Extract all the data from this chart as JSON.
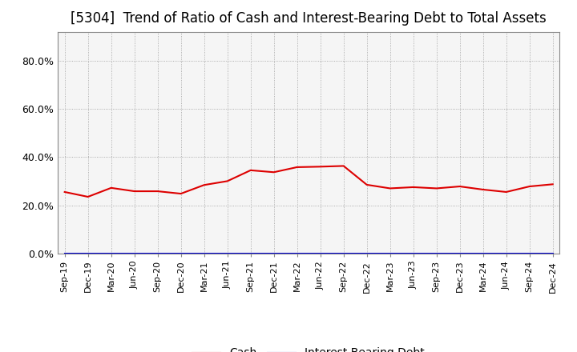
{
  "title": "[5304]  Trend of Ratio of Cash and Interest-Bearing Debt to Total Assets",
  "x_labels": [
    "Sep-19",
    "Dec-19",
    "Mar-20",
    "Jun-20",
    "Sep-20",
    "Dec-20",
    "Mar-21",
    "Jun-21",
    "Sep-21",
    "Dec-21",
    "Mar-22",
    "Jun-22",
    "Sep-22",
    "Dec-22",
    "Mar-23",
    "Jun-23",
    "Sep-23",
    "Dec-23",
    "Mar-24",
    "Jun-24",
    "Sep-24",
    "Dec-24"
  ],
  "cash_values": [
    0.255,
    0.235,
    0.272,
    0.258,
    0.258,
    0.248,
    0.284,
    0.3,
    0.345,
    0.337,
    0.358,
    0.36,
    0.363,
    0.285,
    0.27,
    0.275,
    0.27,
    0.278,
    0.265,
    0.255,
    0.278,
    0.287
  ],
  "interest_bearing_debt_values": [
    0.0,
    0.0,
    0.0,
    0.0,
    0.0,
    0.0,
    0.0,
    0.0,
    0.0,
    0.0,
    0.0,
    0.0,
    0.0,
    0.0,
    0.0,
    0.0,
    0.0,
    0.0,
    0.0,
    0.0,
    0.0,
    0.0
  ],
  "cash_color": "#dd0000",
  "interest_color": "#0000cc",
  "background_color": "#ffffff",
  "plot_bg_color": "#f5f5f5",
  "grid_color": "#999999",
  "title_fontsize": 12,
  "legend_labels": [
    "Cash",
    "Interest-Bearing Debt"
  ],
  "ylim": [
    0.0,
    0.92
  ],
  "ytick_vals": [
    0.0,
    0.2,
    0.4,
    0.6,
    0.8
  ],
  "ytick_labels": [
    "0.0%",
    "20.0%",
    "40.0%",
    "60.0%",
    "80.0%"
  ]
}
